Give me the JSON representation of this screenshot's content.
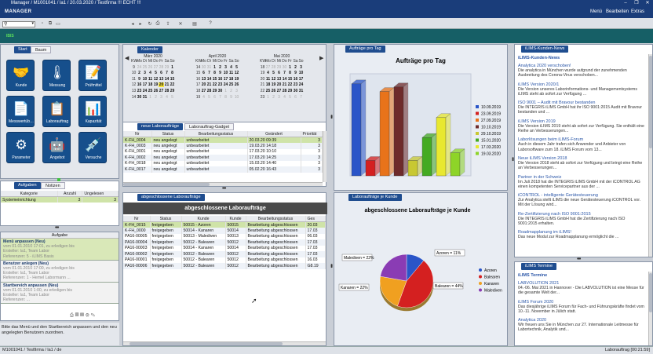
{
  "window": {
    "title": "Manager / M1001041 / la1 / 20.03.2020 / Testfirma !!! ECHT !!!",
    "min": "–",
    "max": "❐",
    "close": "✕"
  },
  "appbar": {
    "brand": "MANAGER",
    "menu": [
      "Menü",
      "Bearbeiten",
      "Extras"
    ]
  },
  "subbar": {
    "label": "IBIS"
  },
  "left": {
    "tabs": [
      "Start",
      "Baum"
    ],
    "tiles": [
      {
        "label": "Kunde",
        "icon": "handshake-icon",
        "glyph": "🤝"
      },
      {
        "label": "Messung",
        "icon": "thermometer-icon",
        "glyph": "🌡"
      },
      {
        "label": "Prüfmittel",
        "icon": "clipboard-pencil-icon",
        "glyph": "📝"
      },
      {
        "label": "Messwertüb…",
        "icon": "document-icon",
        "glyph": "📄"
      },
      {
        "label": "Laborauftrag",
        "icon": "clipboard-check-icon",
        "glyph": "📋"
      },
      {
        "label": "Kapazität",
        "icon": "bar-chart-icon",
        "glyph": "📊"
      },
      {
        "label": "Parameter",
        "icon": "gear-icon",
        "glyph": "⚙"
      },
      {
        "label": "Angebot",
        "icon": "robot-icon",
        "glyph": "🤖"
      },
      {
        "label": "Versuche",
        "icon": "pipette-icon",
        "glyph": "💉"
      }
    ],
    "task_tabs": [
      "Aufgaben",
      "Notizen"
    ],
    "task_table": {
      "headers": [
        "Kategorie",
        "Anzahl",
        "Ungelesen"
      ],
      "rows": [
        [
          "Systemeinrichtung",
          "3",
          "3"
        ]
      ]
    },
    "aufgabe_header": "Aufgabe",
    "aufgaben": [
      {
        "title": "Menü anpassen (Neu)",
        "line1": "vom 01.01.2010 17:01, zu erledigen bis",
        "line2": "Ersteller: la1, Team Labor",
        "line3": "Referenzen: 5 - iLIMS Basis"
      },
      {
        "title": "Benutzer anlegen (Neu)",
        "line1": "vom 01.01.2010 17:00, zu erledigen bis",
        "line2": "Ersteller: la1, Team Labor",
        "line3": "Referenzen: 1 - Hemel Labormann ..."
      },
      {
        "title": "Startbereich anpassen (Neu)",
        "line1": "vom 01.01.2010 1:00, zu erledigen bis",
        "line2": "Ersteller: la1, Team Labor",
        "line3": "Referenzen: ..."
      }
    ],
    "hint": "Bitte das Menü und den Startbereich anpassen und den neu angelegten Benutzern zuordnen."
  },
  "calendar": {
    "header": "Kalender",
    "months": [
      {
        "name": "März 2020",
        "rows": [
          [
            "KW",
            "Mo",
            "Di",
            "Mi",
            "Do",
            "Fr",
            "Sa",
            "So"
          ],
          [
            "9",
            "24",
            "25",
            "26",
            "27",
            "28",
            "29",
            "1"
          ],
          [
            "10",
            "2",
            "3",
            "4",
            "5",
            "6",
            "7",
            "8"
          ],
          [
            "11",
            "9",
            "10",
            "11",
            "12",
            "13",
            "14",
            "15"
          ],
          [
            "12",
            "16",
            "17",
            "18",
            "19",
            "20",
            "21",
            "22"
          ],
          [
            "13",
            "23",
            "24",
            "25",
            "26",
            "27",
            "28",
            "29"
          ],
          [
            "14",
            "30",
            "31",
            "1",
            "2",
            "3",
            "4",
            "5"
          ]
        ]
      },
      {
        "name": "April 2020",
        "rows": [
          [
            "KW",
            "Mo",
            "Di",
            "Mi",
            "Do",
            "Fr",
            "Sa",
            "So"
          ],
          [
            "14",
            "30",
            "31",
            "1",
            "2",
            "3",
            "4",
            "5"
          ],
          [
            "15",
            "6",
            "7",
            "8",
            "9",
            "10",
            "11",
            "12"
          ],
          [
            "16",
            "13",
            "14",
            "15",
            "16",
            "17",
            "18",
            "19"
          ],
          [
            "17",
            "20",
            "21",
            "22",
            "23",
            "24",
            "25",
            "26"
          ],
          [
            "18",
            "27",
            "28",
            "29",
            "30",
            "1",
            "2",
            "3"
          ],
          [
            "19",
            "4",
            "5",
            "6",
            "7",
            "8",
            "9",
            "10"
          ]
        ]
      },
      {
        "name": "Mai 2020",
        "rows": [
          [
            "KW",
            "Mo",
            "Di",
            "Mi",
            "Do",
            "Fr",
            "Sa",
            "So"
          ],
          [
            "18",
            "27",
            "28",
            "29",
            "30",
            "1",
            "2",
            "3"
          ],
          [
            "19",
            "4",
            "5",
            "6",
            "7",
            "8",
            "9",
            "10"
          ],
          [
            "20",
            "11",
            "12",
            "13",
            "14",
            "15",
            "16",
            "17"
          ],
          [
            "21",
            "18",
            "19",
            "20",
            "21",
            "22",
            "23",
            "24"
          ],
          [
            "22",
            "25",
            "26",
            "27",
            "28",
            "29",
            "30",
            "31"
          ],
          [
            "23",
            "1",
            "2",
            "3",
            "4",
            "5",
            "6",
            "7"
          ]
        ]
      }
    ],
    "today": "20"
  },
  "neue": {
    "tabs": [
      "neue Laboraufträge",
      "Laborauftrag-Gadget"
    ],
    "headers": [
      "Nr",
      "Status",
      "Bearbeitungsstatus",
      "Geändert",
      "Priorität"
    ],
    "rows": [
      [
        "K-FH_0004",
        "neu angelegt",
        "unbearbeitet",
        "20.03.20 09:39",
        "3"
      ],
      [
        "K-FH_0003",
        "neu angelegt",
        "unbearbeitet",
        "19.03.20 14:18",
        "3"
      ],
      [
        "K-FH_0001",
        "neu angelegt",
        "unbearbeitet",
        "17.03.20 10:10",
        "3"
      ],
      [
        "K-FH_0002",
        "neu angelegt",
        "unbearbeitet",
        "17.03.20 14:25",
        "3"
      ],
      [
        "K-FH_0018",
        "neu angelegt",
        "unbearbeitet",
        "15.03.20 14:40",
        "3"
      ],
      [
        "K-FH_0017",
        "neu angelegt",
        "unbearbeitet",
        "05.02.20 16:43",
        "3"
      ]
    ]
  },
  "abgeschlossen": {
    "tab": "abgeschlossene Laboraufträge",
    "title": "abgeschlossene Laboraufträge",
    "headers": [
      "Nr",
      "Status",
      "Kunde",
      "Kunde",
      "Bearbeitungsstatus",
      "Ges"
    ],
    "rows": [
      [
        "K-FH_0015",
        "freigegeben",
        "50015 - Azoren",
        "50015",
        "Bearbeitung abgeschlossen",
        "20.03"
      ],
      [
        "K-FH_0000",
        "freigegeben",
        "50014 - Kanaren",
        "50014",
        "Bearbeitung abgeschlossen",
        "17.03"
      ],
      [
        "PA16-00005",
        "freigegeben",
        "50013 - Malediven",
        "50013",
        "Bearbeitung abgeschlossen",
        "06.03"
      ],
      [
        "PA16-00004",
        "freigegeben",
        "50012 - Balearen",
        "50012",
        "Bearbeitung abgeschlossen",
        "17.03"
      ],
      [
        "PA16-00003",
        "freigegeben",
        "50014 - Kanaren",
        "50014",
        "Bearbeitung abgeschlossen",
        "17.03"
      ],
      [
        "PA16-00002",
        "freigegeben",
        "50012 - Balearen",
        "50012",
        "Bearbeitung abgeschlossen",
        "17.03"
      ],
      [
        "PA16-00001",
        "freigegeben",
        "50012 - Balearen",
        "50012",
        "Bearbeitung abgeschlossen",
        "16.03"
      ],
      [
        "PA16-00006",
        "freigegeben",
        "50012 - Balearen",
        "50012",
        "Bearbeitung abgeschlossen",
        "G8.19"
      ]
    ]
  },
  "bar_panel": {
    "tab": "Aufträge pro Tag"
  },
  "pie_panel": {
    "tab": "Laboraufträge je Kunde"
  },
  "chart_data": [
    {
      "type": "bar",
      "title": "Aufträge pro Tag",
      "categories": [
        "10.09.2019",
        "23.09.2019",
        "27.09.2019",
        "10.10.2019",
        "29.10.2019",
        "15.01.2020",
        "17.03.2020",
        "19.03.2020"
      ],
      "values": [
        6,
        1,
        5.5,
        5.8,
        1,
        2.5,
        3.8,
        1.5
      ],
      "colors": [
        "#2a55c8",
        "#d42020",
        "#e8731a",
        "#6e2b2b",
        "#c8c832",
        "#44aa22",
        "#e8e830",
        "#8ed428"
      ]
    },
    {
      "type": "pie",
      "title": "abgeschlossene Laboraufträge je Kunde",
      "categories": [
        "Azoren",
        "Balearen",
        "Kanaren",
        "Malediven"
      ],
      "values": [
        11,
        44,
        22,
        22
      ],
      "labels": [
        "Azoren = 11%",
        "Balearen = 44%",
        "Kanaren = 22%",
        "Malediven = 22%"
      ],
      "colors": [
        "#2a55c8",
        "#d42020",
        "#f0a020",
        "#8a3cb4"
      ]
    }
  ],
  "news": {
    "header": "iLIMS-Kunden-News",
    "section": "iLIMS-Kunden-News",
    "items": [
      {
        "t": "Analytica 2020 verschoben!",
        "d": "Die analytica in München wurde aufgrund der zunehmenden Ausbreitung des Corona-Virus verschoben..."
      },
      {
        "t": "iLIMS Version 2020/1",
        "d": "Die Version unseres Laborinformations- und Managementsystems iLIMS steht ab sofort zur Verfügung ..."
      },
      {
        "t": "ISO 9001 – Audit mit Bravour bestanden",
        "d": "Die INTEGRIS iLIMS GmbH hat ihr ISO 9001:2015 Audit mit Bravour bestanden und ..."
      },
      {
        "t": "iLIMS Version 2019",
        "d": "Die Version iLIMS 2019 steht ab sofort zur Verfügung. Sie enthält eine Reihe an Verbesserungen..."
      },
      {
        "t": "Laborlösungen beim iLIMS-Forum",
        "d": "Auch in diesem Jahr trafen sich Anwender und Anbieter von Laborsoftware zum 18. iLIMS Forum vom 13..."
      },
      {
        "t": "Neue iLIMS Version 2018",
        "d": "Die Version 2018 steht ab sofort zur Verfügung und bringt eine Reihe an Verbesserungen..."
      },
      {
        "t": "Partner in der Schweiz",
        "d": "Im Juli 2018 hat die INTEGRIS iLIMS GmbH mit der iCONTROL AG einen kompetenten Servicepartner aus der ..."
      },
      {
        "t": "iCONTROL - intelligente Gerätesteuerung",
        "d": "Zur Analytica stellt iLIMS die neue Gerätesteuerung iCONTROL vor. Mit der Lösung wird..."
      },
      {
        "t": "Re-Zertifizierung nach ISO 9001:2015",
        "d": "Die INTEGRIS iLIMS GmbH hat die Zertifizierung nach ISO 9001:2015 erhalten."
      },
      {
        "t": "Roadmapplanung im iLIMS!",
        "d": "Das neue Modul zur Roadmapplanung ermöglicht die ..."
      }
    ]
  },
  "termine": {
    "header": "iLIMS Termine",
    "section": "iLIMS Termine",
    "items": [
      {
        "t": "LABVOLUTION 2021",
        "d": "04.-06. Mai 2021 in Hannover - Die LABVOLUTION ist eine Messe für die gesamte Welt der..."
      },
      {
        "t": "iLIMS Forum 2020",
        "d": "Das diesjährige iLIMS Forum für Fach- und Führungskräfte findet vom 10.-11. November in Jülich statt."
      },
      {
        "t": "Analytica 2020",
        "d": "Wir freuen uns Sie in München zur 27. Internationale Leitmesse für Labortechnik, Analytik und..."
      }
    ]
  },
  "status": {
    "left": "M1001041 / Testfirma / la1 / de",
    "right": "Laborauftrag [00:21:59]"
  }
}
